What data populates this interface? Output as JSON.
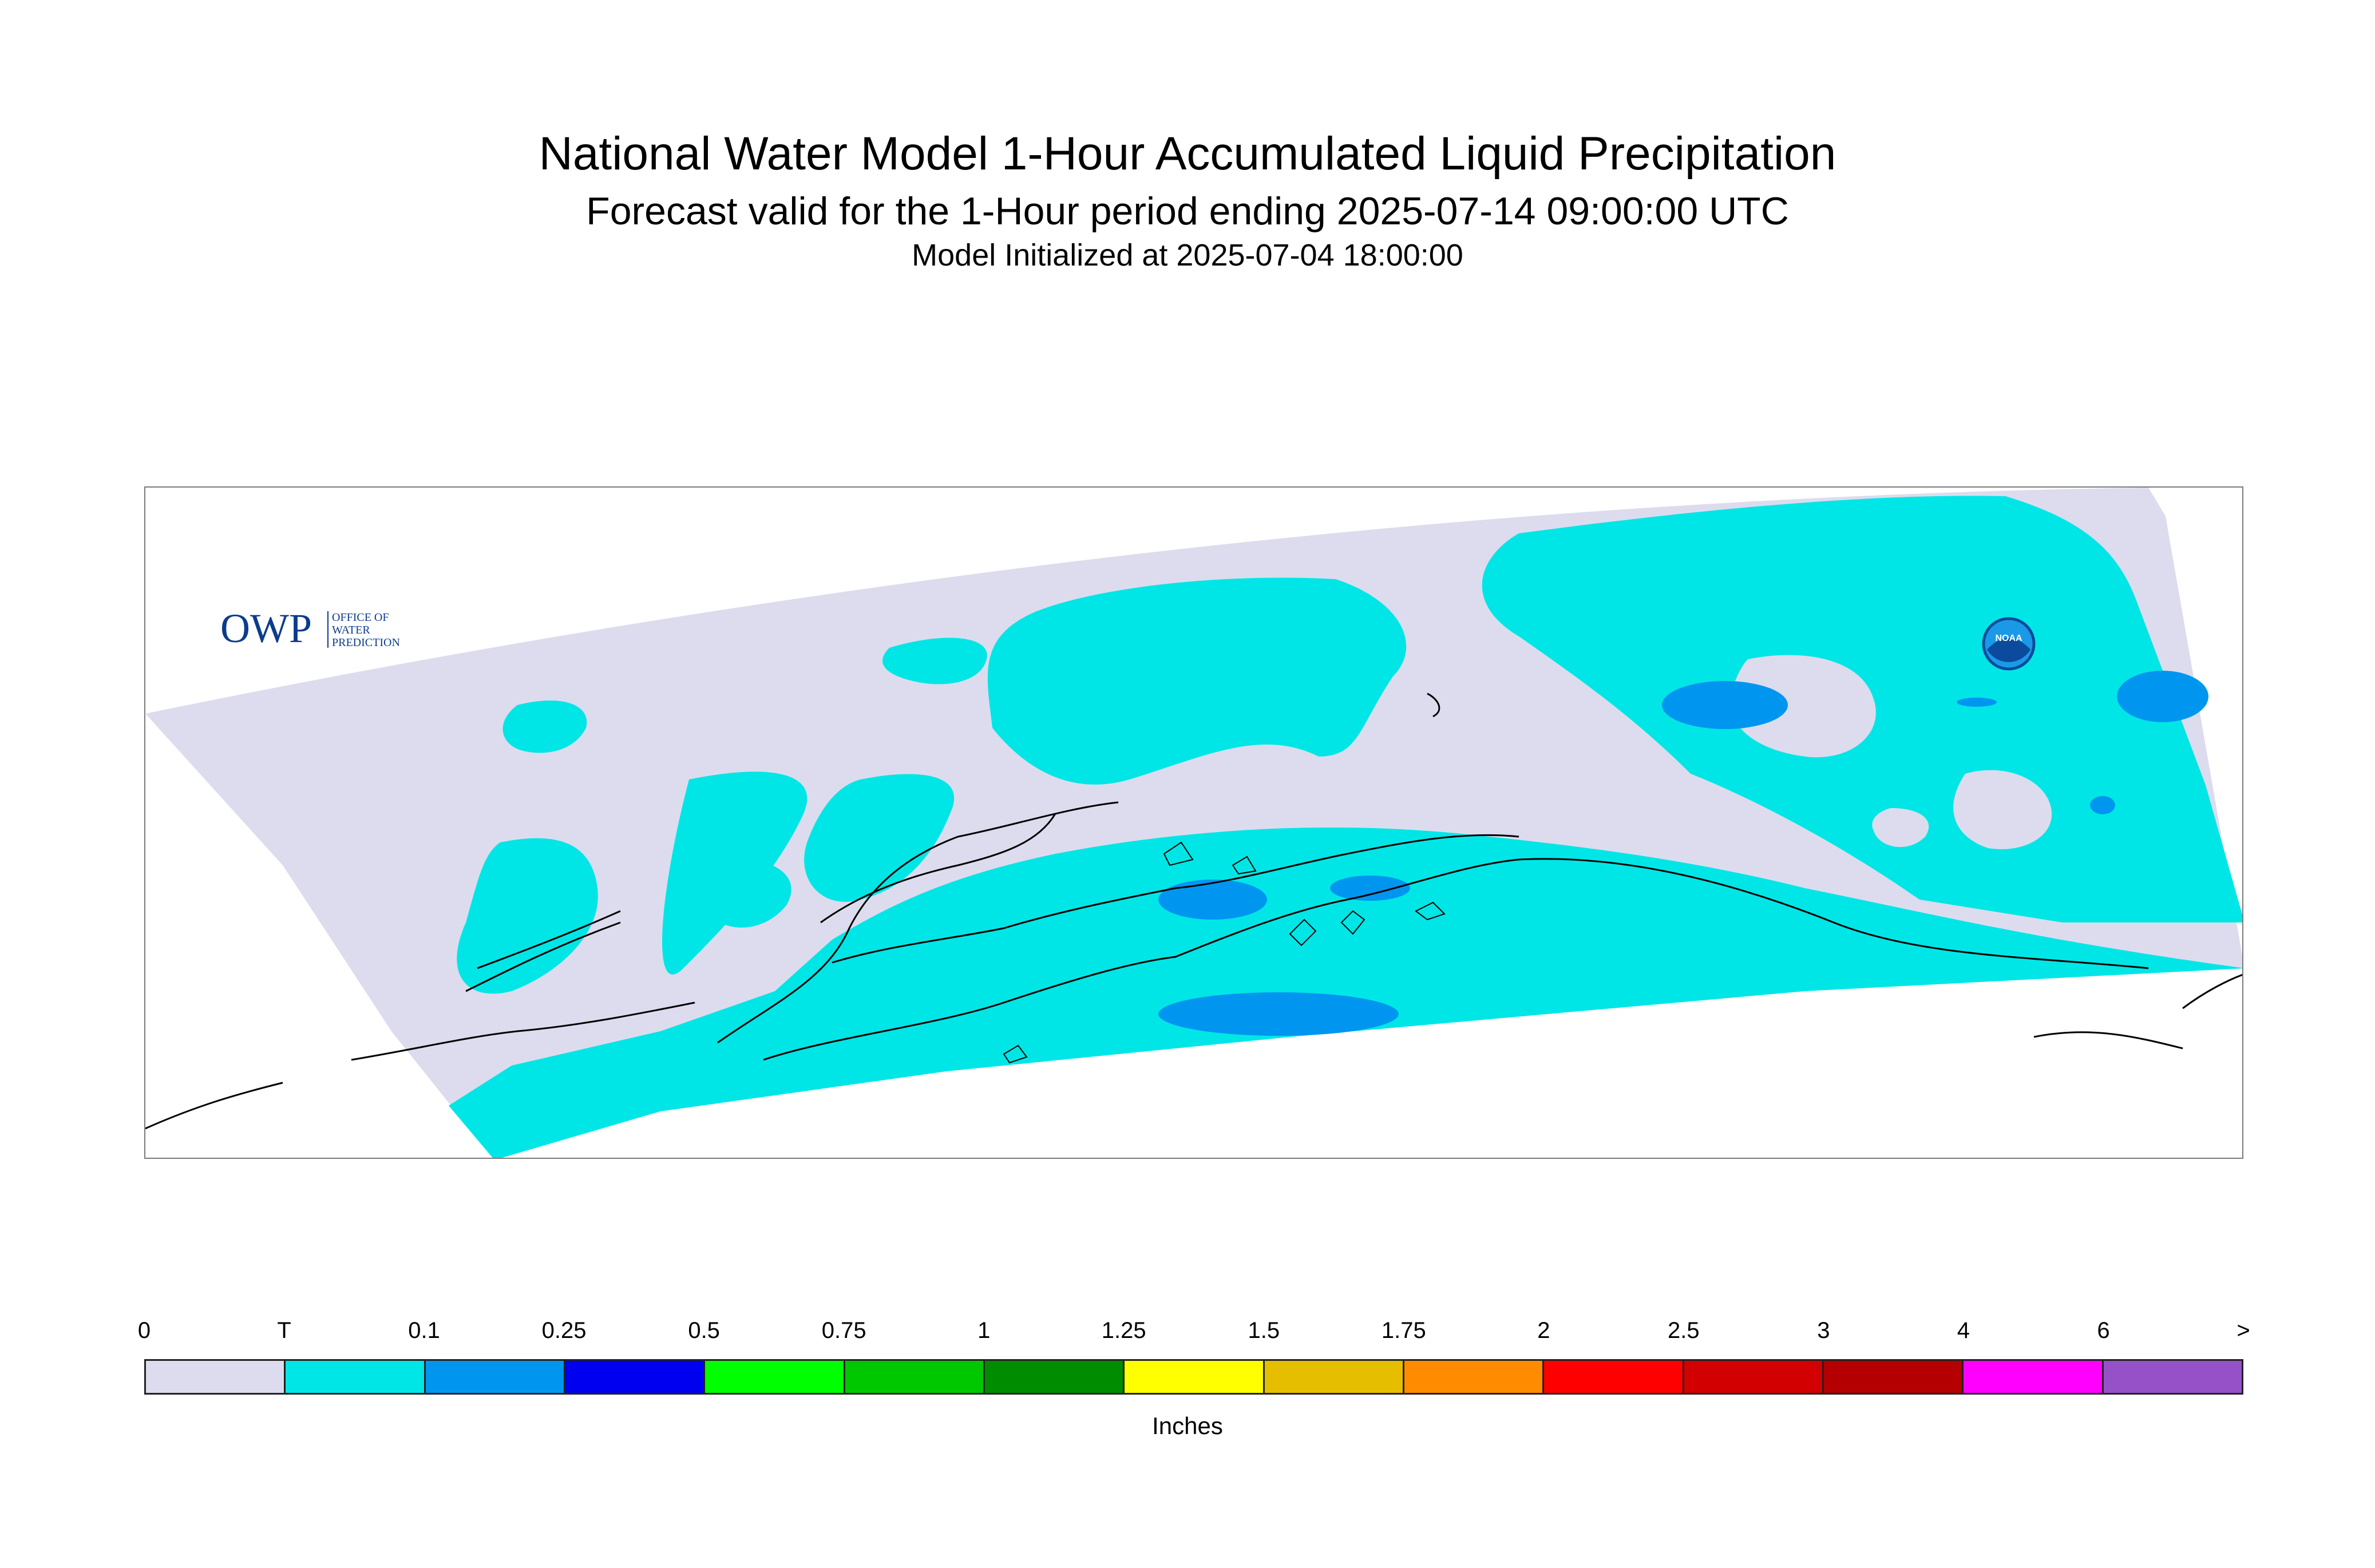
{
  "title": "National Water Model 1-Hour Accumulated Liquid Precipitation",
  "subtitle": "Forecast valid for the 1-Hour period ending 2025-07-14 09:00:00 UTC",
  "init_line": "Model Initialized at 2025-07-04 18:00:00",
  "logos": {
    "owp_mark": "OWP",
    "owp_lines": [
      "OFFICE OF",
      "WATER",
      "PREDICTION"
    ],
    "noaa_mark": "NOAA"
  },
  "legend": {
    "tick_labels": [
      "0",
      "T",
      "0.1",
      "0.25",
      "0.5",
      "0.75",
      "1",
      "1.25",
      "1.5",
      "1.75",
      "2",
      "2.5",
      "3",
      "4",
      "6",
      ">"
    ],
    "colors": [
      "#dcdcee",
      "#00e6e6",
      "#0096f0",
      "#0000f0",
      "#00ff00",
      "#00c800",
      "#008c00",
      "#ffff00",
      "#e6be00",
      "#ff8c00",
      "#ff0000",
      "#d20000",
      "#b40000",
      "#ff00ff",
      "#9650c8"
    ],
    "units": "Inches"
  },
  "map_colors": {
    "zero": "#dcdcee",
    "trace": "#00e6e6",
    "light": "#0096f0",
    "heavier": "#0a82e6",
    "coast": "#000000"
  }
}
